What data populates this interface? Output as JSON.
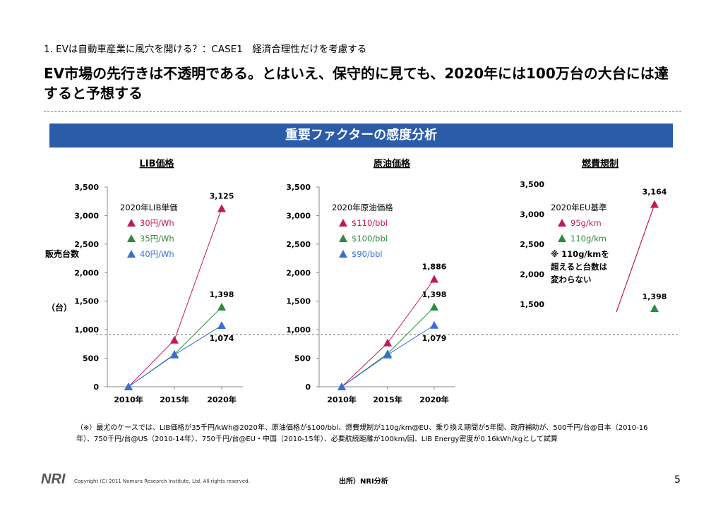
{
  "header": {
    "subtitle": "1. EVは自動車産業に風穴を開ける？：CASE1　経済合理性だけを考慮する",
    "headline": "EV市場の先行きは不透明である。とはいえ、保守的に見ても、2020年には100万台の大台には達すると予想する"
  },
  "banner": {
    "title": "重要ファクターの感度分析"
  },
  "y_axis_label": {
    "main": "販売台数",
    "unit": "（台）"
  },
  "colors": {
    "banner": "#2a5caa",
    "series1": "#c2185b",
    "series2": "#2e8b3e",
    "series3": "#3a6fd8"
  },
  "chart_data": [
    {
      "type": "line",
      "title": "LIB価格",
      "legend_title": "2020年LIB単価",
      "legend_placement": "top-left",
      "categories": [
        "2010年",
        "2015年",
        "2020年"
      ],
      "yticks": [
        "0",
        "500",
        "1,000",
        "1,500",
        "2,000",
        "2,500",
        "3,000",
        "3,500"
      ],
      "ylim": [
        0,
        3500
      ],
      "series": [
        {
          "name": "30円/Wh",
          "values": [
            0,
            820,
            3125
          ]
        },
        {
          "name": "35円/Wh",
          "values": [
            0,
            570,
            1398
          ]
        },
        {
          "name": "40円/Wh",
          "values": [
            0,
            560,
            1074
          ]
        }
      ],
      "data_labels": [
        "3,125",
        "1,398",
        "1,074"
      ]
    },
    {
      "type": "line",
      "title": "原油価格",
      "legend_title": "2020年原油価格",
      "legend_placement": "top-left",
      "categories": [
        "2010年",
        "2015年",
        "2020年"
      ],
      "yticks": [
        "0",
        "500",
        "1,000",
        "1,500",
        "2,000",
        "2,500",
        "3,000",
        "3,500"
      ],
      "ylim": [
        0,
        3500
      ],
      "series": [
        {
          "name": "$110/bbl",
          "values": [
            0,
            770,
            1886
          ]
        },
        {
          "name": "$100/bbl",
          "values": [
            0,
            580,
            1398
          ]
        },
        {
          "name": "$90/bbl",
          "values": [
            0,
            560,
            1079
          ]
        }
      ],
      "data_labels": [
        "1,886",
        "1,398",
        "1,079"
      ]
    },
    {
      "type": "line",
      "title": "燃費規制",
      "legend_title": "2020年EU基準",
      "legend_placement": "top-left",
      "yticks": [
        "1,500",
        "2,000",
        "2,500",
        "3,000",
        "3,500"
      ],
      "ylim": [
        1500,
        3500
      ],
      "series": [
        {
          "name": "95g/km",
          "values": [
            3164
          ]
        },
        {
          "name": "110g/km",
          "values": [
            1398
          ]
        }
      ],
      "note": [
        "※ 110g/kmを",
        "超えると台数は",
        "変わらない"
      ],
      "data_labels": [
        "3,164",
        "1,398"
      ]
    }
  ],
  "footnote": "（※）最尤のケースでは、LIB価格が35千円/kWh@2020年、原油価格が$100/bbl、燃費規制が110g/km@EU、乗り換え期間が5年間、政府補助が、500千円/台@日本（2010-16年）、750千円/台@US（2010-14年）、750千円/台@EU・中国（2010-15年）、必要航続距離が100km/回、LIB Energy密度が0.16kWh/kgとして試算",
  "copyright": "Copyright (C) 2011 Nomura Research Institute, Ltd. All rights reserved.",
  "source": "出所）NRI分析",
  "logo_text": "NRI",
  "page_number": "5"
}
